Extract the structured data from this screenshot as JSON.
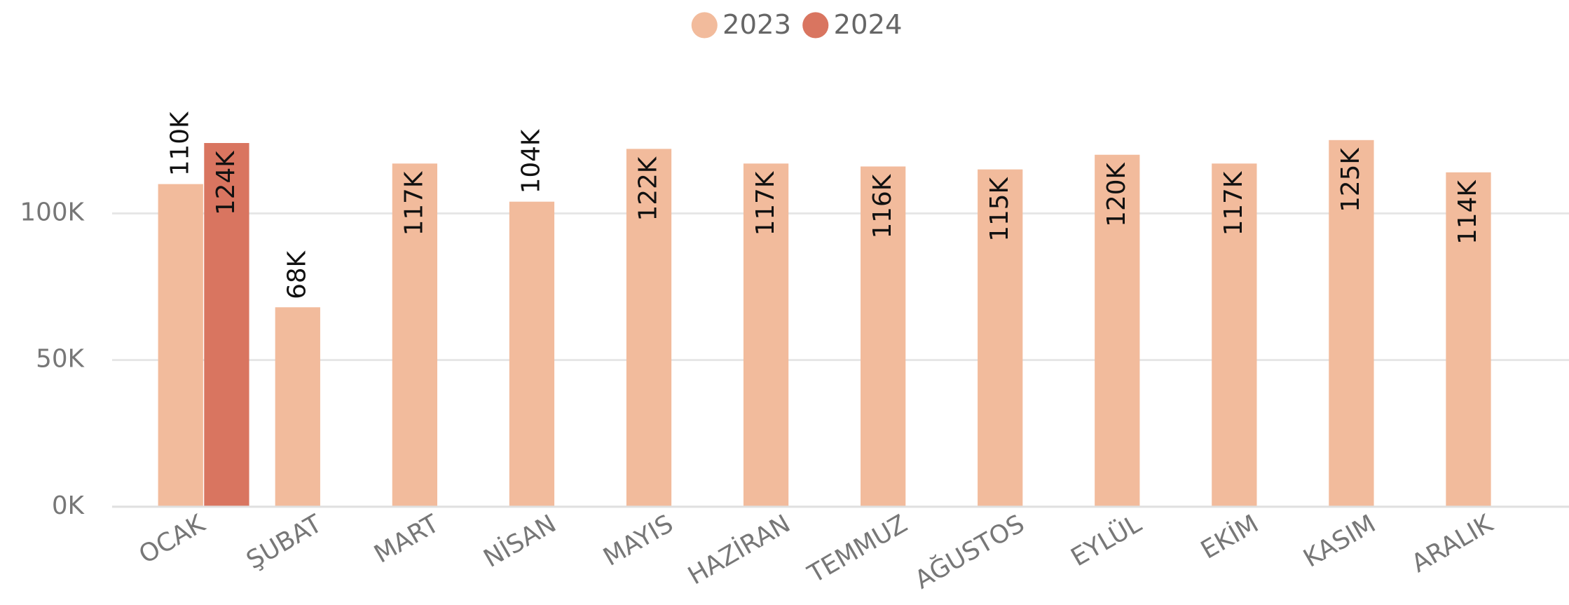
{
  "chart_data": {
    "type": "bar",
    "categories": [
      "OCAK",
      "ŞUBAT",
      "MART",
      "NİSAN",
      "MAYIS",
      "HAZİRAN",
      "TEMMUZ",
      "AĞUSTOS",
      "EYLÜL",
      "EKİM",
      "KASIM",
      "ARALIK"
    ],
    "series": [
      {
        "name": "2023",
        "color": "#F2BB9C",
        "values": [
          110000,
          68000,
          117000,
          104000,
          122000,
          117000,
          116000,
          115000,
          120000,
          117000,
          125000,
          114000
        ],
        "value_labels": [
          "110K",
          "68K",
          "117K",
          "104K",
          "122K",
          "117K",
          "116K",
          "115K",
          "120K",
          "117K",
          "125K",
          "114K"
        ]
      },
      {
        "name": "2024",
        "color": "#D97560",
        "values": [
          124000,
          null,
          null,
          null,
          null,
          null,
          null,
          null,
          null,
          null,
          null,
          null
        ],
        "value_labels": [
          "124K",
          null,
          null,
          null,
          null,
          null,
          null,
          null,
          null,
          null,
          null,
          null
        ]
      }
    ],
    "ylim": [
      0,
      130000
    ],
    "yticks": [
      {
        "value": 0,
        "label": "0K"
      },
      {
        "value": 50000,
        "label": "50K"
      },
      {
        "value": 100000,
        "label": "100K"
      }
    ],
    "grid": true,
    "legend": "top"
  }
}
